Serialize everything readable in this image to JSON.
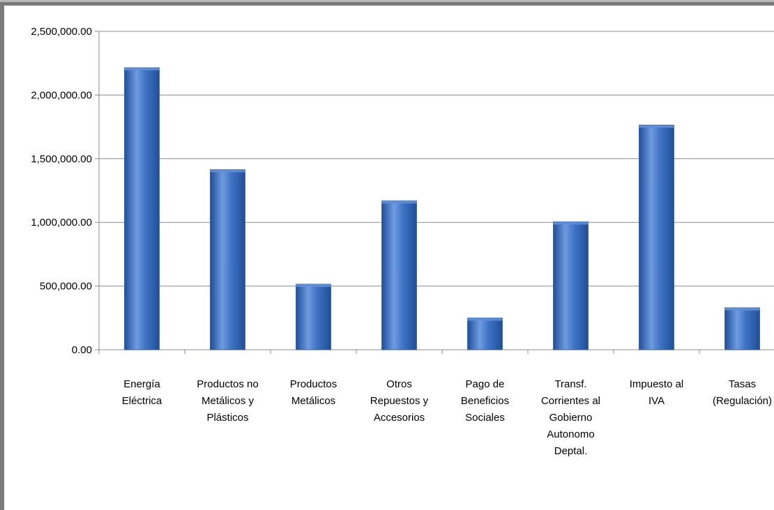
{
  "chart_data": {
    "type": "bar",
    "categories": [
      "Energía\nEléctrica",
      "Productos no\nMetálicos y\nPlásticos",
      "Productos\nMetálicos",
      "Otros\nRepuestos y\nAccesorios",
      "Pago de\nBeneficios\nSociales",
      "Transf.\nCorrientes al\nGobierno\nAutonomo\nDeptal.",
      "Impuesto al\nIVA",
      "Tasas\n(Regulación)"
    ],
    "values": [
      2215000,
      1415000,
      515000,
      1170000,
      250000,
      1005000,
      1765000,
      330000
    ],
    "ylim": [
      0,
      2500000
    ],
    "yticks": [
      "0.00",
      "500,000.00",
      "1,000,000.00",
      "1,500,000.00",
      "2,000,000.00",
      "2,500,000.00"
    ],
    "ytick_values": [
      0,
      500000,
      1000000,
      1500000,
      2000000,
      2500000
    ],
    "grid": true,
    "legend": "none",
    "bar_color": "#3f73c4",
    "bar_color_dark": "#1f4f99",
    "bar_color_light": "#6f9be0"
  }
}
